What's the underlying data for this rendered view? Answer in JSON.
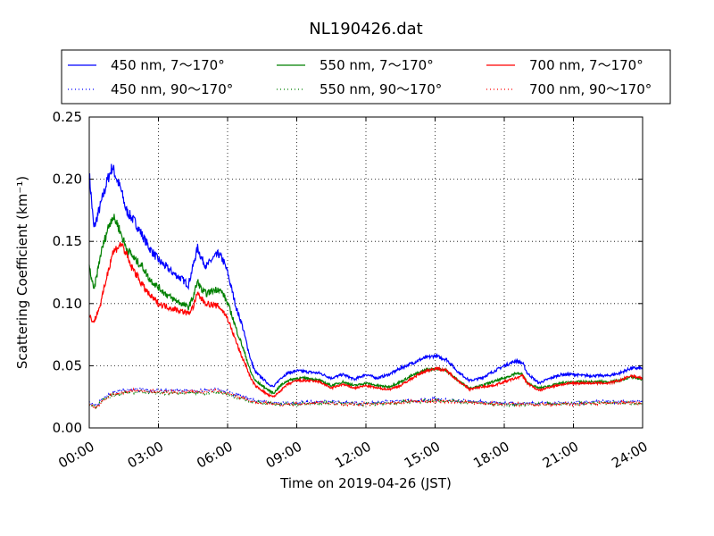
{
  "chart_data": {
    "type": "line",
    "title": "NL190426.dat",
    "xlabel": "Time on 2019-04-26 (JST)",
    "ylabel": "Scattering Coefficient (km⁻¹)",
    "xlim": [
      0,
      24
    ],
    "ylim": [
      0,
      0.25
    ],
    "x_tick_values": [
      0,
      3,
      6,
      9,
      12,
      15,
      18,
      21,
      24
    ],
    "x_tick_labels": [
      "00:00",
      "03:00",
      "06:00",
      "09:00",
      "12:00",
      "15:00",
      "18:00",
      "21:00",
      "24:00"
    ],
    "y_tick_values": [
      0,
      0.05,
      0.1,
      0.15,
      0.2,
      0.25
    ],
    "y_tick_labels": [
      "0.00",
      "0.05",
      "0.10",
      "0.15",
      "0.20",
      "0.25"
    ],
    "grid": true,
    "legend_position": "top",
    "series": [
      {
        "name": "450 nm, 7～170°",
        "color": "#0000ff",
        "style": "solid",
        "x": [
          0,
          0.2,
          0.5,
          0.8,
          1.0,
          1.2,
          1.4,
          1.6,
          1.8,
          2.0,
          2.3,
          2.6,
          3.0,
          3.3,
          3.6,
          4.0,
          4.3,
          4.5,
          4.7,
          4.9,
          5.1,
          5.3,
          5.6,
          5.8,
          6.0,
          6.2,
          6.4,
          6.6,
          6.8,
          7.0,
          7.2,
          7.5,
          7.8,
          8.0,
          8.3,
          8.6,
          9.0,
          9.5,
          10.0,
          10.5,
          11.0,
          11.5,
          12.0,
          12.5,
          13.0,
          13.5,
          14.0,
          14.5,
          15.0,
          15.5,
          16.0,
          16.5,
          17.0,
          17.5,
          18.0,
          18.5,
          18.8,
          19.0,
          19.5,
          20.0,
          20.5,
          21.0,
          21.5,
          22.0,
          22.5,
          23.0,
          23.5,
          24.0
        ],
        "y": [
          0.205,
          0.16,
          0.18,
          0.2,
          0.21,
          0.2,
          0.19,
          0.175,
          0.17,
          0.165,
          0.155,
          0.145,
          0.135,
          0.13,
          0.125,
          0.12,
          0.115,
          0.13,
          0.145,
          0.135,
          0.13,
          0.135,
          0.14,
          0.135,
          0.125,
          0.11,
          0.095,
          0.085,
          0.07,
          0.055,
          0.045,
          0.04,
          0.035,
          0.033,
          0.04,
          0.044,
          0.046,
          0.045,
          0.044,
          0.04,
          0.043,
          0.039,
          0.043,
          0.04,
          0.043,
          0.048,
          0.052,
          0.056,
          0.058,
          0.055,
          0.045,
          0.038,
          0.04,
          0.045,
          0.05,
          0.054,
          0.052,
          0.044,
          0.036,
          0.04,
          0.043,
          0.043,
          0.042,
          0.042,
          0.042,
          0.044,
          0.048,
          0.048
        ]
      },
      {
        "name": "450 nm, 90～170°",
        "color": "#0000ff",
        "style": "dotted",
        "x": [
          0,
          0.3,
          0.6,
          1.0,
          1.5,
          2.0,
          3.0,
          4.0,
          5.0,
          5.5,
          6.0,
          6.5,
          7.0,
          7.5,
          8.0,
          9.0,
          10.0,
          12.0,
          14.0,
          15.0,
          16.0,
          18.0,
          20.0,
          22.0,
          24.0
        ],
        "y": [
          0.02,
          0.018,
          0.024,
          0.028,
          0.03,
          0.031,
          0.03,
          0.03,
          0.03,
          0.031,
          0.029,
          0.026,
          0.023,
          0.021,
          0.02,
          0.02,
          0.021,
          0.02,
          0.022,
          0.023,
          0.022,
          0.02,
          0.02,
          0.021,
          0.021
        ]
      },
      {
        "name": "550 nm, 7～170°",
        "color": "#008000",
        "style": "solid",
        "x": [
          0,
          0.2,
          0.5,
          0.8,
          1.0,
          1.2,
          1.4,
          1.6,
          1.8,
          2.0,
          2.3,
          2.6,
          3.0,
          3.3,
          3.6,
          4.0,
          4.3,
          4.5,
          4.7,
          4.9,
          5.1,
          5.3,
          5.6,
          5.8,
          6.0,
          6.2,
          6.4,
          6.6,
          6.8,
          7.0,
          7.2,
          7.5,
          7.8,
          8.0,
          8.3,
          8.6,
          9.0,
          9.5,
          10.0,
          10.5,
          11.0,
          11.5,
          12.0,
          12.5,
          13.0,
          13.5,
          14.0,
          14.5,
          15.0,
          15.5,
          16.0,
          16.5,
          17.0,
          17.5,
          18.0,
          18.5,
          18.8,
          19.0,
          19.5,
          20.0,
          20.5,
          21.0,
          21.5,
          22.0,
          22.5,
          23.0,
          23.5,
          24.0
        ],
        "y": [
          0.13,
          0.11,
          0.14,
          0.16,
          0.17,
          0.165,
          0.155,
          0.145,
          0.14,
          0.135,
          0.13,
          0.12,
          0.113,
          0.108,
          0.104,
          0.1,
          0.097,
          0.105,
          0.118,
          0.11,
          0.108,
          0.11,
          0.112,
          0.108,
          0.1,
          0.09,
          0.078,
          0.068,
          0.057,
          0.045,
          0.038,
          0.034,
          0.03,
          0.028,
          0.034,
          0.038,
          0.04,
          0.04,
          0.038,
          0.034,
          0.037,
          0.034,
          0.036,
          0.034,
          0.033,
          0.037,
          0.042,
          0.046,
          0.048,
          0.046,
          0.038,
          0.032,
          0.034,
          0.037,
          0.04,
          0.044,
          0.043,
          0.036,
          0.032,
          0.034,
          0.036,
          0.037,
          0.037,
          0.037,
          0.037,
          0.038,
          0.041,
          0.039
        ]
      },
      {
        "name": "550 nm, 90～170°",
        "color": "#008000",
        "style": "dotted",
        "x": [
          0,
          0.3,
          0.6,
          1.0,
          1.5,
          2.0,
          3.0,
          4.0,
          5.0,
          5.5,
          6.0,
          6.5,
          7.0,
          7.5,
          8.0,
          9.0,
          10.0,
          12.0,
          14.0,
          15.0,
          16.0,
          18.0,
          20.0,
          22.0,
          24.0
        ],
        "y": [
          0.019,
          0.017,
          0.022,
          0.026,
          0.028,
          0.029,
          0.028,
          0.028,
          0.028,
          0.029,
          0.027,
          0.024,
          0.021,
          0.02,
          0.019,
          0.019,
          0.02,
          0.019,
          0.021,
          0.022,
          0.021,
          0.019,
          0.019,
          0.02,
          0.02
        ]
      },
      {
        "name": "700 nm, 7～170°",
        "color": "#ff0000",
        "style": "solid",
        "x": [
          0,
          0.2,
          0.5,
          0.8,
          1.0,
          1.2,
          1.4,
          1.6,
          1.8,
          2.0,
          2.3,
          2.6,
          3.0,
          3.3,
          3.6,
          4.0,
          4.3,
          4.5,
          4.7,
          4.9,
          5.1,
          5.3,
          5.6,
          5.8,
          6.0,
          6.2,
          6.4,
          6.6,
          6.8,
          7.0,
          7.2,
          7.5,
          7.8,
          8.0,
          8.3,
          8.6,
          9.0,
          9.5,
          10.0,
          10.5,
          11.0,
          11.5,
          12.0,
          12.5,
          13.0,
          13.5,
          14.0,
          14.5,
          15.0,
          15.5,
          16.0,
          16.5,
          17.0,
          17.5,
          18.0,
          18.5,
          18.8,
          19.0,
          19.5,
          20.0,
          20.5,
          21.0,
          21.5,
          22.0,
          22.5,
          23.0,
          23.5,
          24.0
        ],
        "y": [
          0.09,
          0.085,
          0.1,
          0.125,
          0.14,
          0.145,
          0.148,
          0.14,
          0.13,
          0.125,
          0.115,
          0.107,
          0.1,
          0.098,
          0.096,
          0.094,
          0.092,
          0.097,
          0.108,
          0.103,
          0.1,
          0.099,
          0.098,
          0.094,
          0.088,
          0.078,
          0.068,
          0.058,
          0.05,
          0.04,
          0.034,
          0.03,
          0.026,
          0.025,
          0.03,
          0.035,
          0.038,
          0.038,
          0.037,
          0.032,
          0.035,
          0.032,
          0.034,
          0.032,
          0.031,
          0.034,
          0.04,
          0.045,
          0.048,
          0.046,
          0.038,
          0.031,
          0.033,
          0.034,
          0.037,
          0.04,
          0.042,
          0.036,
          0.03,
          0.033,
          0.035,
          0.036,
          0.036,
          0.036,
          0.036,
          0.038,
          0.042,
          0.04
        ]
      },
      {
        "name": "700 nm, 90～170°",
        "color": "#ff0000",
        "style": "dotted",
        "x": [
          0,
          0.3,
          0.6,
          1.0,
          1.5,
          2.0,
          3.0,
          4.0,
          5.0,
          5.5,
          6.0,
          6.5,
          7.0,
          7.5,
          8.0,
          9.0,
          10.0,
          12.0,
          14.0,
          15.0,
          16.0,
          18.0,
          20.0,
          22.0,
          24.0
        ],
        "y": [
          0.018,
          0.016,
          0.022,
          0.027,
          0.029,
          0.03,
          0.029,
          0.029,
          0.029,
          0.03,
          0.028,
          0.025,
          0.022,
          0.02,
          0.019,
          0.019,
          0.02,
          0.019,
          0.021,
          0.022,
          0.021,
          0.019,
          0.019,
          0.02,
          0.02
        ]
      }
    ]
  }
}
